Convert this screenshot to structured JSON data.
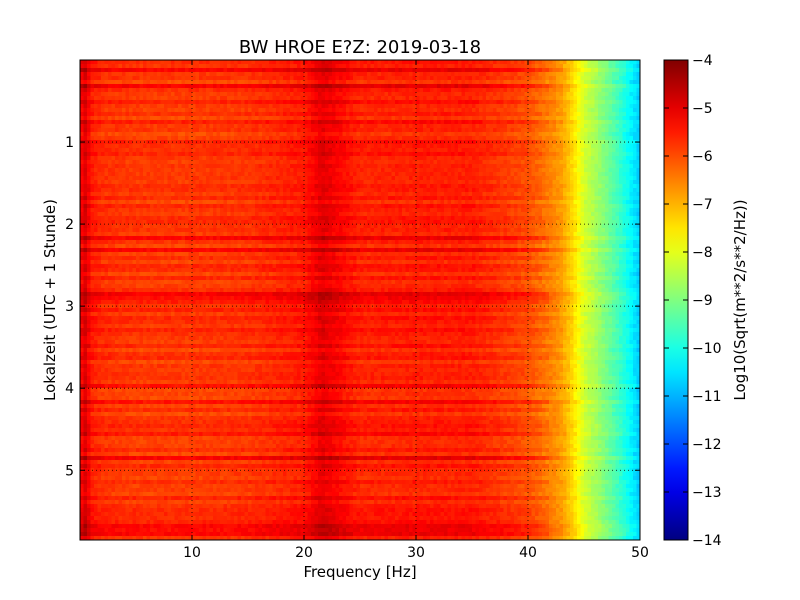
{
  "chart_data": {
    "type": "heatmap",
    "title": "BW HROE E?Z: 2019-03-18",
    "xlabel": "Frequency [Hz]",
    "ylabel": "Lokalzeit (UTC + 1 Stunde)",
    "colorbar_label": "Log10(Sqrt(m**2/s**2/Hz))",
    "colormap": "jet",
    "xlim": [
      0,
      50
    ],
    "ylim": [
      5.85,
      0
    ],
    "y_inverted": true,
    "clim": [
      -14,
      -4
    ],
    "x_ticks": [
      10,
      20,
      30,
      40,
      50
    ],
    "x_tick_labels": [
      "10",
      "20",
      "30",
      "40",
      "50"
    ],
    "y_ticks": [
      1,
      2,
      3,
      4,
      5
    ],
    "y_tick_labels": [
      "1",
      "2",
      "3",
      "4",
      "5"
    ],
    "colorbar_ticks": [
      -4,
      -5,
      -6,
      -7,
      -8,
      -9,
      -10,
      -11,
      -12,
      -13,
      -14
    ],
    "colorbar_tick_labels": [
      "−4",
      "−5",
      "−6",
      "−7",
      "−8",
      "−9",
      "−10",
      "−11",
      "−12",
      "−13",
      "−14"
    ],
    "grid": true,
    "grid_style": "dotted",
    "spectrum_profile": {
      "frequency_hz": [
        0,
        0.5,
        1,
        2,
        5,
        10,
        15,
        20,
        21.6,
        25,
        30,
        35,
        38,
        40,
        42,
        43,
        44,
        45,
        46,
        47,
        48,
        49,
        50
      ],
      "level": [
        -5.3,
        -4.9,
        -5.5,
        -5.7,
        -5.8,
        -5.8,
        -5.75,
        -5.5,
        -5.0,
        -5.6,
        -5.55,
        -5.55,
        -5.8,
        -6.0,
        -6.5,
        -6.8,
        -7.4,
        -8.2,
        -8.6,
        -9.1,
        -9.6,
        -10.2,
        -10.8
      ]
    }
  }
}
